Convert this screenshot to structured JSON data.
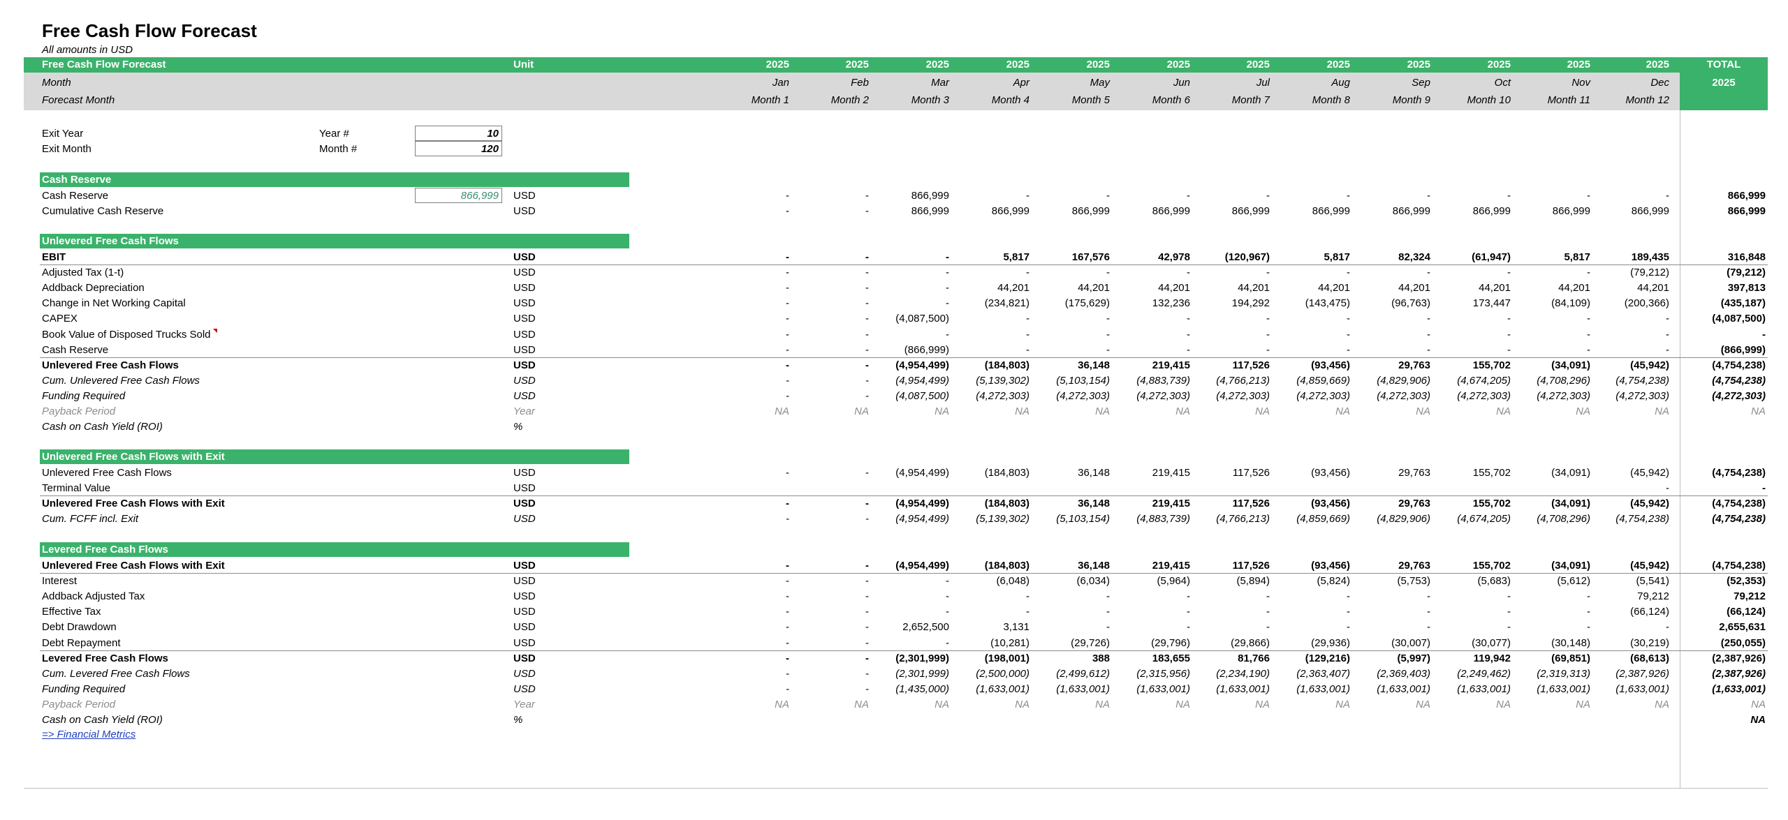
{
  "title": "Free Cash Flow Forecast",
  "subtitle": "All amounts in USD",
  "header": {
    "label": "Free Cash Flow Forecast",
    "unit": "Unit",
    "month_label": "Month",
    "forecast_label": "Forecast Month",
    "years": [
      "2025",
      "2025",
      "2025",
      "2025",
      "2025",
      "2025",
      "2025",
      "2025",
      "2025",
      "2025",
      "2025",
      "2025"
    ],
    "months": [
      "Jan",
      "Feb",
      "Mar",
      "Apr",
      "May",
      "Jun",
      "Jul",
      "Aug",
      "Sep",
      "Oct",
      "Nov",
      "Dec"
    ],
    "forecast_months": [
      "Month 1",
      "Month 2",
      "Month 3",
      "Month 4",
      "Month 5",
      "Month 6",
      "Month 7",
      "Month 8",
      "Month 9",
      "Month 10",
      "Month 11",
      "Month 12"
    ],
    "total_label": "TOTAL",
    "total_year": "2025"
  },
  "exit": [
    {
      "label": "Exit Year",
      "sublabel": "Year #",
      "value": "10"
    },
    {
      "label": "Exit Month",
      "sublabel": "Month #",
      "value": "120"
    }
  ],
  "sections": [
    {
      "title": "Cash Reserve",
      "rows": [
        {
          "label": "Cash Reserve",
          "unit": "USD",
          "input": "866,999",
          "values": [
            "-",
            "-",
            "866,999",
            "-",
            "-",
            "-",
            "-",
            "-",
            "-",
            "-",
            "-",
            "-"
          ],
          "total": "866,999",
          "style": "normal",
          "total_bold": true
        },
        {
          "label": "Cumulative Cash Reserve",
          "unit": "USD",
          "values": [
            "-",
            "-",
            "866,999",
            "866,999",
            "866,999",
            "866,999",
            "866,999",
            "866,999",
            "866,999",
            "866,999",
            "866,999",
            "866,999"
          ],
          "total": "866,999",
          "style": "normal",
          "total_bold": true
        }
      ]
    },
    {
      "title": "Unlevered Free Cash Flows",
      "rows": [
        {
          "label": "EBIT",
          "unit": "USD",
          "values": [
            "-",
            "-",
            "-",
            "5,817",
            "167,576",
            "42,978",
            "(120,967)",
            "5,817",
            "82,324",
            "(61,947)",
            "5,817",
            "189,435"
          ],
          "total": "316,848",
          "style": "bold",
          "line_below": true
        },
        {
          "label": "Adjusted Tax (1-t)",
          "unit": "USD",
          "values": [
            "-",
            "-",
            "-",
            "-",
            "-",
            "-",
            "-",
            "-",
            "-",
            "-",
            "-",
            "(79,212)"
          ],
          "total": "(79,212)",
          "style": "normal",
          "total_bold": true
        },
        {
          "label": "Addback Depreciation",
          "unit": "USD",
          "values": [
            "-",
            "-",
            "-",
            "44,201",
            "44,201",
            "44,201",
            "44,201",
            "44,201",
            "44,201",
            "44,201",
            "44,201",
            "44,201"
          ],
          "total": "397,813",
          "style": "normal",
          "total_bold": true
        },
        {
          "label": "Change in Net Working Capital",
          "unit": "USD",
          "values": [
            "-",
            "-",
            "-",
            "(234,821)",
            "(175,629)",
            "132,236",
            "194,292",
            "(143,475)",
            "(96,763)",
            "173,447",
            "(84,109)",
            "(200,366)"
          ],
          "total": "(435,187)",
          "style": "normal",
          "total_bold": true
        },
        {
          "label": "CAPEX",
          "unit": "USD",
          "values": [
            "-",
            "-",
            "(4,087,500)",
            "-",
            "-",
            "-",
            "-",
            "-",
            "-",
            "-",
            "-",
            "-"
          ],
          "total": "(4,087,500)",
          "style": "normal",
          "total_bold": true
        },
        {
          "label": "Book Value of Disposed Trucks Sold",
          "unit": "USD",
          "values": [
            "-",
            "-",
            "-",
            "-",
            "-",
            "-",
            "-",
            "-",
            "-",
            "-",
            "-",
            "-"
          ],
          "total": "-",
          "style": "normal",
          "total_bold": true,
          "comment": true
        },
        {
          "label": "Cash Reserve",
          "unit": "USD",
          "values": [
            "-",
            "-",
            "(866,999)",
            "-",
            "-",
            "-",
            "-",
            "-",
            "-",
            "-",
            "-",
            "-"
          ],
          "total": "(866,999)",
          "style": "normal",
          "total_bold": true,
          "line_below": true
        },
        {
          "label": "Unlevered Free Cash Flows",
          "unit": "USD",
          "values": [
            "-",
            "-",
            "(4,954,499)",
            "(184,803)",
            "36,148",
            "219,415",
            "117,526",
            "(93,456)",
            "29,763",
            "155,702",
            "(34,091)",
            "(45,942)"
          ],
          "total": "(4,754,238)",
          "style": "bold"
        },
        {
          "label": "Cum. Unlevered Free Cash Flows",
          "unit": "USD",
          "values": [
            "-",
            "-",
            "(4,954,499)",
            "(5,139,302)",
            "(5,103,154)",
            "(4,883,739)",
            "(4,766,213)",
            "(4,859,669)",
            "(4,829,906)",
            "(4,674,205)",
            "(4,708,296)",
            "(4,754,238)"
          ],
          "total": "(4,754,238)",
          "style": "italic"
        },
        {
          "label": "Funding Required",
          "unit": "USD",
          "values": [
            "-",
            "-",
            "(4,087,500)",
            "(4,272,303)",
            "(4,272,303)",
            "(4,272,303)",
            "(4,272,303)",
            "(4,272,303)",
            "(4,272,303)",
            "(4,272,303)",
            "(4,272,303)",
            "(4,272,303)"
          ],
          "total": "(4,272,303)",
          "style": "italic"
        },
        {
          "label": "Payback Period",
          "unit": "Year",
          "values": [
            "NA",
            "NA",
            "NA",
            "NA",
            "NA",
            "NA",
            "NA",
            "NA",
            "NA",
            "NA",
            "NA",
            "NA"
          ],
          "total": "NA",
          "style": "gray"
        },
        {
          "label": "Cash on Cash Yield (ROI)",
          "unit": "%",
          "values": [
            "",
            "",
            "",
            "",
            "",
            "",
            "",
            "",
            "",
            "",
            "",
            ""
          ],
          "total": "",
          "style": "italic"
        }
      ]
    },
    {
      "title": "Unlevered Free Cash Flows with Exit",
      "rows": [
        {
          "label": "Unlevered Free Cash Flows",
          "unit": "USD",
          "values": [
            "-",
            "-",
            "(4,954,499)",
            "(184,803)",
            "36,148",
            "219,415",
            "117,526",
            "(93,456)",
            "29,763",
            "155,702",
            "(34,091)",
            "(45,942)"
          ],
          "total": "(4,754,238)",
          "style": "normal",
          "total_bold": true
        },
        {
          "label": "Terminal Value",
          "unit": "USD",
          "values": [
            "",
            "",
            "",
            "",
            "",
            "",
            "",
            "",
            "",
            "",
            "",
            "-"
          ],
          "total": "-",
          "style": "normal",
          "total_bold": true,
          "line_below": true
        },
        {
          "label": "Unlevered Free Cash Flows with Exit",
          "unit": "USD",
          "values": [
            "-",
            "-",
            "(4,954,499)",
            "(184,803)",
            "36,148",
            "219,415",
            "117,526",
            "(93,456)",
            "29,763",
            "155,702",
            "(34,091)",
            "(45,942)"
          ],
          "total": "(4,754,238)",
          "style": "bold"
        },
        {
          "label": "Cum. FCFF incl. Exit",
          "unit": "USD",
          "values": [
            "-",
            "-",
            "(4,954,499)",
            "(5,139,302)",
            "(5,103,154)",
            "(4,883,739)",
            "(4,766,213)",
            "(4,859,669)",
            "(4,829,906)",
            "(4,674,205)",
            "(4,708,296)",
            "(4,754,238)"
          ],
          "total": "(4,754,238)",
          "style": "italic"
        }
      ]
    },
    {
      "title": "Levered Free Cash Flows",
      "rows": [
        {
          "label": "Unlevered Free Cash Flows with Exit",
          "unit": "USD",
          "values": [
            "-",
            "-",
            "(4,954,499)",
            "(184,803)",
            "36,148",
            "219,415",
            "117,526",
            "(93,456)",
            "29,763",
            "155,702",
            "(34,091)",
            "(45,942)"
          ],
          "total": "(4,754,238)",
          "style": "bold",
          "line_below": true
        },
        {
          "label": "Interest",
          "unit": "USD",
          "values": [
            "-",
            "-",
            "-",
            "(6,048)",
            "(6,034)",
            "(5,964)",
            "(5,894)",
            "(5,824)",
            "(5,753)",
            "(5,683)",
            "(5,612)",
            "(5,541)"
          ],
          "total": "(52,353)",
          "style": "normal",
          "total_bold": true
        },
        {
          "label": "Addback Adjusted Tax",
          "unit": "USD",
          "values": [
            "-",
            "-",
            "-",
            "-",
            "-",
            "-",
            "-",
            "-",
            "-",
            "-",
            "-",
            "79,212"
          ],
          "total": "79,212",
          "style": "normal",
          "total_bold": true
        },
        {
          "label": "Effective Tax",
          "unit": "USD",
          "values": [
            "-",
            "-",
            "-",
            "-",
            "-",
            "-",
            "-",
            "-",
            "-",
            "-",
            "-",
            "(66,124)"
          ],
          "total": "(66,124)",
          "style": "normal",
          "total_bold": true
        },
        {
          "label": "Debt Drawdown",
          "unit": "USD",
          "values": [
            "-",
            "-",
            "2,652,500",
            "3,131",
            "-",
            "-",
            "-",
            "-",
            "-",
            "-",
            "-",
            "-"
          ],
          "total": "2,655,631",
          "style": "normal",
          "total_bold": true
        },
        {
          "label": "Debt Repayment",
          "unit": "USD",
          "values": [
            "-",
            "-",
            "-",
            "(10,281)",
            "(29,726)",
            "(29,796)",
            "(29,866)",
            "(29,936)",
            "(30,007)",
            "(30,077)",
            "(30,148)",
            "(30,219)"
          ],
          "total": "(250,055)",
          "style": "normal",
          "total_bold": true,
          "line_below": true
        },
        {
          "label": "Levered Free Cash Flows",
          "unit": "USD",
          "values": [
            "-",
            "-",
            "(2,301,999)",
            "(198,001)",
            "388",
            "183,655",
            "81,766",
            "(129,216)",
            "(5,997)",
            "119,942",
            "(69,851)",
            "(68,613)"
          ],
          "total": "(2,387,926)",
          "style": "bold"
        },
        {
          "label": "Cum. Levered Free Cash Flows",
          "unit": "USD",
          "values": [
            "-",
            "-",
            "(2,301,999)",
            "(2,500,000)",
            "(2,499,612)",
            "(2,315,956)",
            "(2,234,190)",
            "(2,363,407)",
            "(2,369,403)",
            "(2,249,462)",
            "(2,319,313)",
            "(2,387,926)"
          ],
          "total": "(2,387,926)",
          "style": "italic"
        },
        {
          "label": "Funding Required",
          "unit": "USD",
          "values": [
            "-",
            "-",
            "(1,435,000)",
            "(1,633,001)",
            "(1,633,001)",
            "(1,633,001)",
            "(1,633,001)",
            "(1,633,001)",
            "(1,633,001)",
            "(1,633,001)",
            "(1,633,001)",
            "(1,633,001)"
          ],
          "total": "(1,633,001)",
          "style": "italic"
        },
        {
          "label": "Payback Period",
          "unit": "Year",
          "values": [
            "NA",
            "NA",
            "NA",
            "NA",
            "NA",
            "NA",
            "NA",
            "NA",
            "NA",
            "NA",
            "NA",
            "NA"
          ],
          "total": "NA",
          "style": "gray"
        },
        {
          "label": "Cash on Cash Yield (ROI)",
          "unit": "%",
          "values": [
            "",
            "",
            "",
            "",
            "",
            "",
            "",
            "",
            "",
            "",
            "",
            ""
          ],
          "total": "NA",
          "style": "italic"
        }
      ]
    }
  ],
  "footer_link": "=> Financial Metrics",
  "colors": {
    "band": "#3bb26b",
    "grey_band": "#d9d9d9",
    "input_text": "#3a8f6e",
    "link": "#1f3fbf"
  }
}
